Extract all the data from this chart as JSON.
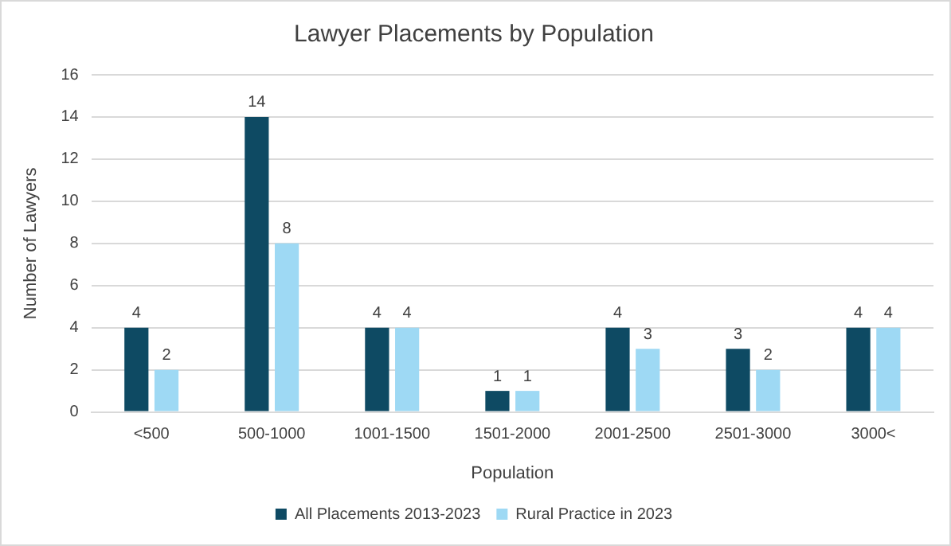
{
  "chart_data": {
    "type": "bar",
    "title": "Lawyer Placements by Population",
    "xlabel": "Population",
    "ylabel": "Number of Lawyers",
    "categories": [
      "<500",
      "500-1000",
      "1001-1500",
      "1501-2000",
      "2001-2500",
      "2501-3000",
      "3000<"
    ],
    "series": [
      {
        "name": "All Placements 2013-2023",
        "color": "#0e4a63",
        "values": [
          4,
          14,
          4,
          1,
          4,
          3,
          4
        ]
      },
      {
        "name": "Rural Practice in 2023",
        "color": "#9ed9f4",
        "values": [
          2,
          8,
          4,
          1,
          3,
          2,
          4
        ]
      }
    ],
    "ylim": [
      0,
      16
    ],
    "yticks": [
      0,
      2,
      4,
      6,
      8,
      10,
      12,
      14,
      16
    ],
    "grid": "y",
    "legend": "bottom",
    "data_labels": true
  }
}
